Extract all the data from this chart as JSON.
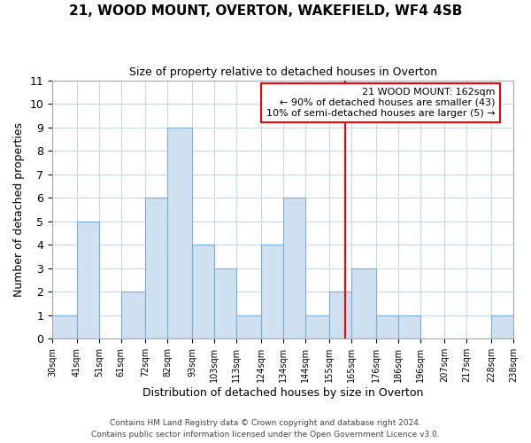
{
  "title": "21, WOOD MOUNT, OVERTON, WAKEFIELD, WF4 4SB",
  "subtitle": "Size of property relative to detached houses in Overton",
  "xlabel": "Distribution of detached houses by size in Overton",
  "ylabel": "Number of detached properties",
  "bar_color": "#cfe0f0",
  "bar_edge_color": "#7ab0d4",
  "bin_edges": [
    30,
    41,
    51,
    61,
    72,
    82,
    93,
    103,
    113,
    124,
    134,
    144,
    155,
    165,
    176,
    186,
    196,
    207,
    217,
    228,
    238
  ],
  "bin_labels": [
    "30sqm",
    "41sqm",
    "51sqm",
    "61sqm",
    "72sqm",
    "82sqm",
    "93sqm",
    "103sqm",
    "113sqm",
    "124sqm",
    "134sqm",
    "144sqm",
    "155sqm",
    "165sqm",
    "176sqm",
    "186sqm",
    "196sqm",
    "207sqm",
    "217sqm",
    "228sqm",
    "238sqm"
  ],
  "counts": [
    1,
    5,
    0,
    2,
    6,
    9,
    4,
    3,
    1,
    4,
    6,
    1,
    2,
    3,
    1,
    1,
    0,
    0,
    0,
    1,
    0
  ],
  "property_line_x": 162,
  "annotation_title": "21 WOOD MOUNT: 162sqm",
  "annotation_line1": "← 90% of detached houses are smaller (43)",
  "annotation_line2": "10% of semi-detached houses are larger (5) →",
  "ylim": [
    0,
    11
  ],
  "yticks": [
    0,
    1,
    2,
    3,
    4,
    5,
    6,
    7,
    8,
    9,
    10,
    11
  ],
  "footer_line1": "Contains HM Land Registry data © Crown copyright and database right 2024.",
  "footer_line2": "Contains public sector information licensed under the Open Government Licence v3.0.",
  "background_color": "#ffffff",
  "grid_color": "#c8d8e8"
}
